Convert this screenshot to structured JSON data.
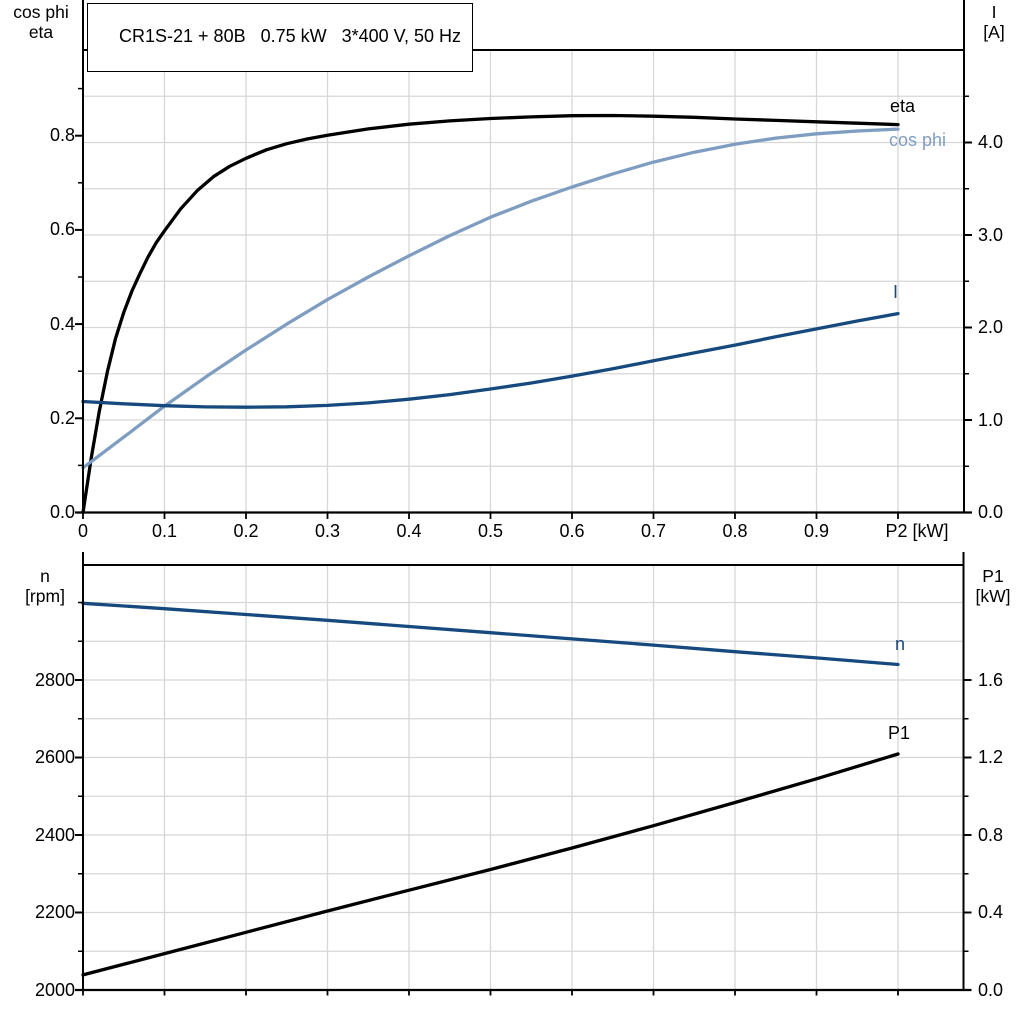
{
  "title_box": {
    "text": "CR1S-21 + 80B   0.75 kW   3*400 V, 50 Hz"
  },
  "colors": {
    "black": "#000000",
    "dark_blue": "#16497d",
    "light_blue": "#7f9dc1",
    "grid": "#d7d7d7",
    "background": "#ffffff"
  },
  "chart_data": [
    {
      "type": "line",
      "name": "motor-performance-curves",
      "x_axis": {
        "label": "P2 [kW]",
        "tick_labels": [
          "0",
          "0.1",
          "0.2",
          "0.3",
          "0.4",
          "0.5",
          "0.6",
          "0.7",
          "0.8",
          "0.9"
        ],
        "tick_values": [
          0,
          0.1,
          0.2,
          0.3,
          0.4,
          0.5,
          0.6,
          0.7,
          0.8,
          0.9,
          1.0
        ],
        "grid_values": [
          0.1,
          0.2,
          0.3,
          0.4,
          0.5,
          0.6,
          0.7,
          0.8,
          0.9,
          1.0
        ],
        "range": [
          0,
          1.08
        ]
      },
      "left_axis": {
        "header": [
          "cos phi",
          "eta"
        ],
        "tick_labels": [
          "0.0",
          "0.2",
          "0.4",
          "0.6",
          "0.8"
        ],
        "tick_values": [
          0,
          0.2,
          0.4,
          0.6,
          0.8
        ],
        "minor_values": [
          0.1,
          0.3,
          0.5,
          0.7,
          0.9
        ],
        "range": [
          0,
          0.98
        ]
      },
      "right_axis": {
        "header": [
          "I",
          "[A]"
        ],
        "tick_labels": [
          "0.0",
          "1.0",
          "2.0",
          "3.0",
          "4.0"
        ],
        "tick_values": [
          0,
          1,
          2,
          3,
          4
        ],
        "minor_values": [
          0.5,
          1.5,
          2.5,
          3.5,
          4.5
        ],
        "grid_values": [
          0.5,
          1,
          1.5,
          2,
          2.5,
          3,
          3.5,
          4,
          4.5
        ],
        "range": [
          0,
          5
        ]
      },
      "series": [
        {
          "name": "eta",
          "axis": "left",
          "color": "#000000",
          "points": [
            [
              0,
              0
            ],
            [
              0.01,
              0.115
            ],
            [
              0.02,
              0.215
            ],
            [
              0.03,
              0.3
            ],
            [
              0.04,
              0.37
            ],
            [
              0.05,
              0.425
            ],
            [
              0.06,
              0.47
            ],
            [
              0.07,
              0.508
            ],
            [
              0.08,
              0.543
            ],
            [
              0.09,
              0.573
            ],
            [
              0.1,
              0.598
            ],
            [
              0.12,
              0.645
            ],
            [
              0.14,
              0.683
            ],
            [
              0.16,
              0.713
            ],
            [
              0.18,
              0.735
            ],
            [
              0.2,
              0.752
            ],
            [
              0.225,
              0.77
            ],
            [
              0.25,
              0.783
            ],
            [
              0.275,
              0.793
            ],
            [
              0.3,
              0.801
            ],
            [
              0.35,
              0.8145
            ],
            [
              0.4,
              0.8245
            ],
            [
              0.45,
              0.8315
            ],
            [
              0.5,
              0.8365
            ],
            [
              0.55,
              0.84
            ],
            [
              0.6,
              0.8425
            ],
            [
              0.65,
              0.8428
            ],
            [
              0.7,
              0.8415
            ],
            [
              0.75,
              0.839
            ],
            [
              0.8,
              0.8355
            ],
            [
              0.85,
              0.8325
            ],
            [
              0.9,
              0.8295
            ],
            [
              0.95,
              0.8265
            ],
            [
              1.0,
              0.8235
            ]
          ]
        },
        {
          "name": "cos phi",
          "axis": "left",
          "color": "#7f9dc1",
          "points": [
            [
              0,
              0.095
            ],
            [
              0.05,
              0.16
            ],
            [
              0.1,
              0.226
            ],
            [
              0.15,
              0.287
            ],
            [
              0.2,
              0.345
            ],
            [
              0.25,
              0.4
            ],
            [
              0.3,
              0.452
            ],
            [
              0.35,
              0.5
            ],
            [
              0.4,
              0.545
            ],
            [
              0.45,
              0.588
            ],
            [
              0.5,
              0.627
            ],
            [
              0.55,
              0.661
            ],
            [
              0.6,
              0.691
            ],
            [
              0.65,
              0.719
            ],
            [
              0.7,
              0.744
            ],
            [
              0.75,
              0.765
            ],
            [
              0.8,
              0.782
            ],
            [
              0.85,
              0.795
            ],
            [
              0.9,
              0.804
            ],
            [
              0.95,
              0.81
            ],
            [
              1.0,
              0.814
            ]
          ]
        },
        {
          "name": "I",
          "axis": "right",
          "color": "#16497d",
          "points": [
            [
              0,
              1.2
            ],
            [
              0.05,
              1.175
            ],
            [
              0.1,
              1.155
            ],
            [
              0.15,
              1.142
            ],
            [
              0.2,
              1.138
            ],
            [
              0.25,
              1.143
            ],
            [
              0.3,
              1.158
            ],
            [
              0.35,
              1.185
            ],
            [
              0.4,
              1.225
            ],
            [
              0.45,
              1.275
            ],
            [
              0.5,
              1.335
            ],
            [
              0.55,
              1.4
            ],
            [
              0.6,
              1.475
            ],
            [
              0.65,
              1.555
            ],
            [
              0.7,
              1.64
            ],
            [
              0.75,
              1.725
            ],
            [
              0.8,
              1.81
            ],
            [
              0.85,
              1.9
            ],
            [
              0.9,
              1.985
            ],
            [
              0.95,
              2.07
            ],
            [
              1.0,
              2.15
            ]
          ]
        }
      ]
    },
    {
      "type": "line",
      "name": "speed-and-input-power-curves",
      "x_axis": {
        "label": "",
        "tick_labels": [],
        "tick_values": [
          0,
          0.1,
          0.2,
          0.3,
          0.4,
          0.5,
          0.6,
          0.7,
          0.8,
          0.9,
          1.0
        ],
        "grid_values": [
          0.1,
          0.2,
          0.3,
          0.4,
          0.5,
          0.6,
          0.7,
          0.8,
          0.9,
          1.0
        ],
        "range": [
          0,
          1.08
        ]
      },
      "left_axis": {
        "header": [
          "n",
          "[rpm]"
        ],
        "tick_labels": [
          "2000",
          "2200",
          "2400",
          "2600",
          "2800"
        ],
        "tick_values": [
          2000,
          2200,
          2400,
          2600,
          2800
        ],
        "minor_values": [
          2100,
          2300,
          2500,
          2700,
          2900,
          3000
        ],
        "grid_values": [
          2100,
          2200,
          2300,
          2400,
          2500,
          2600,
          2700,
          2800,
          2900,
          3000
        ],
        "range": [
          2000,
          3100
        ]
      },
      "right_axis": {
        "header": [
          "P1",
          "[kW]"
        ],
        "tick_labels": [
          "0.0",
          "0.4",
          "0.8",
          "1.2",
          "1.6"
        ],
        "tick_values": [
          0,
          0.4,
          0.8,
          1.2,
          1.6
        ],
        "minor_values": [
          0.2,
          0.6,
          1.0,
          1.4
        ],
        "range": [
          0,
          2.2
        ]
      },
      "series": [
        {
          "name": "n",
          "axis": "left",
          "color": "#16497d",
          "points": [
            [
              0,
              2998
            ],
            [
              0.1,
              2984
            ],
            [
              0.2,
              2969
            ],
            [
              0.3,
              2954
            ],
            [
              0.4,
              2938
            ],
            [
              0.5,
              2922
            ],
            [
              0.6,
              2906
            ],
            [
              0.7,
              2890
            ],
            [
              0.8,
              2873
            ],
            [
              0.9,
              2857
            ],
            [
              1.0,
              2840
            ]
          ]
        },
        {
          "name": "P1",
          "axis": "right",
          "color": "#000000",
          "points": [
            [
              0,
              0.078
            ],
            [
              0.1,
              0.188
            ],
            [
              0.2,
              0.298
            ],
            [
              0.3,
              0.408
            ],
            [
              0.4,
              0.515
            ],
            [
              0.5,
              0.622
            ],
            [
              0.6,
              0.733
            ],
            [
              0.7,
              0.848
            ],
            [
              0.8,
              0.968
            ],
            [
              0.9,
              1.09
            ],
            [
              1.0,
              1.218
            ]
          ]
        }
      ]
    }
  ]
}
